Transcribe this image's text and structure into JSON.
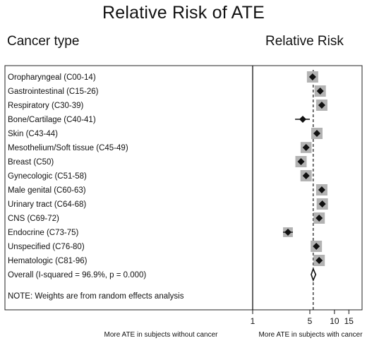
{
  "chart_data": {
    "type": "forest",
    "title": "Relative Risk of ATE",
    "left_header": "Cancer type",
    "right_header": "Relative Risk",
    "x_scale": "log",
    "xlim": [
      1,
      20
    ],
    "x_ticks": [
      1,
      5,
      10,
      15
    ],
    "reference_line": 1,
    "overall_line": 5.5,
    "rows": [
      {
        "label": "Oropharyngeal (C00-14)",
        "rr": 5.4,
        "lo": 5.1,
        "hi": 5.7,
        "weight": 1
      },
      {
        "label": "Gastrointestinal (C15-26)",
        "rr": 6.7,
        "lo": 6.4,
        "hi": 7.0,
        "weight": 1
      },
      {
        "label": "Respiratory (C30-39)",
        "rr": 7.0,
        "lo": 6.7,
        "hi": 7.3,
        "weight": 1
      },
      {
        "label": "Bone/Cartilage (C40-41)",
        "rr": 4.1,
        "lo": 3.3,
        "hi": 5.0,
        "weight": 0.45
      },
      {
        "label": "Skin (C43-44)",
        "rr": 6.1,
        "lo": 5.8,
        "hi": 6.4,
        "weight": 1
      },
      {
        "label": "Mesothelium/Soft tissue (C45-49)",
        "rr": 4.5,
        "lo": 4.2,
        "hi": 4.8,
        "weight": 0.95
      },
      {
        "label": "Breast (C50)",
        "rr": 3.9,
        "lo": 3.7,
        "hi": 4.1,
        "weight": 1
      },
      {
        "label": "Gynecologic (C51-58)",
        "rr": 4.5,
        "lo": 4.2,
        "hi": 4.8,
        "weight": 1
      },
      {
        "label": "Male genital (C60-63)",
        "rr": 7.0,
        "lo": 6.7,
        "hi": 7.3,
        "weight": 1
      },
      {
        "label": "Urinary tract (C64-68)",
        "rr": 7.1,
        "lo": 6.8,
        "hi": 7.4,
        "weight": 1
      },
      {
        "label": "CNS (C69-72)",
        "rr": 6.5,
        "lo": 6.2,
        "hi": 6.8,
        "weight": 1
      },
      {
        "label": "Endocrine (C73-75)",
        "rr": 2.7,
        "lo": 2.35,
        "hi": 3.1,
        "weight": 0.75
      },
      {
        "label": "Unspecified (C76-80)",
        "rr": 6.0,
        "lo": 5.7,
        "hi": 6.3,
        "weight": 1
      },
      {
        "label": "Hematologic (C81-96)",
        "rr": 6.5,
        "lo": 6.2,
        "hi": 6.8,
        "weight": 1
      }
    ],
    "overall": {
      "label": "Overall  (I-squared = 96.9%, p = 0.000)",
      "rr": 5.5,
      "lo": 5.2,
      "hi": 5.9
    },
    "note": "NOTE: Weights are from random effects analysis",
    "xlabel_left": "More ATE in subjects without cancer",
    "xlabel_right": "More ATE in subjects with cancer"
  }
}
